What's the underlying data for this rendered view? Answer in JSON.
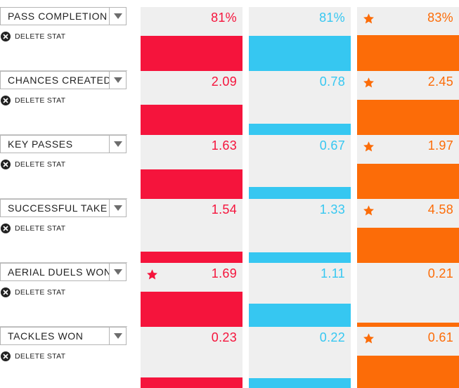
{
  "delete_label": "DELETE STAT",
  "colors": {
    "player1": "#f5143c",
    "player2": "#36c7f1",
    "player3": "#fc6c08"
  },
  "rows": [
    {
      "stat": "PASS COMPLETION",
      "cells": [
        {
          "value": "81%",
          "fill": 0.55,
          "star": false
        },
        {
          "value": "81%",
          "fill": 0.55,
          "star": false
        },
        {
          "value": "83%",
          "fill": 0.56,
          "star": true
        }
      ]
    },
    {
      "stat": "CHANCES CREATED",
      "cells": [
        {
          "value": "2.09",
          "fill": 0.47,
          "star": false
        },
        {
          "value": "0.78",
          "fill": 0.18,
          "star": false
        },
        {
          "value": "2.45",
          "fill": 0.55,
          "star": true
        }
      ]
    },
    {
      "stat": "KEY PASSES",
      "cells": [
        {
          "value": "1.63",
          "fill": 0.46,
          "star": false
        },
        {
          "value": "0.67",
          "fill": 0.19,
          "star": false
        },
        {
          "value": "1.97",
          "fill": 0.55,
          "star": true
        }
      ]
    },
    {
      "stat": "SUCCESSFUL TAKE ONS",
      "cells": [
        {
          "value": "1.54",
          "fill": 0.18,
          "star": false
        },
        {
          "value": "1.33",
          "fill": 0.16,
          "star": false
        },
        {
          "value": "4.58",
          "fill": 0.55,
          "star": true
        }
      ]
    },
    {
      "stat": "AERIAL DUELS WON",
      "cells": [
        {
          "value": "1.69",
          "fill": 0.55,
          "star": true
        },
        {
          "value": "1.11",
          "fill": 0.36,
          "star": false
        },
        {
          "value": "0.21",
          "fill": 0.07,
          "star": false
        }
      ]
    },
    {
      "stat": "TACKLES WON",
      "cells": [
        {
          "value": "0.23",
          "fill": 0.21,
          "star": false
        },
        {
          "value": "0.22",
          "fill": 0.2,
          "star": false
        },
        {
          "value": "0.61",
          "fill": 0.55,
          "star": true
        }
      ]
    }
  ]
}
